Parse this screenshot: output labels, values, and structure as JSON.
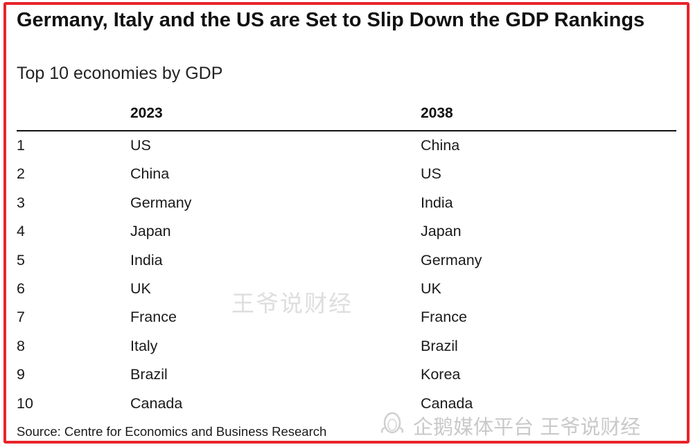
{
  "chart_data": {
    "type": "table",
    "title": "Germany, Italy and the US are Set to Slip Down the GDP Rankings",
    "subtitle": "Top 10 economies by GDP",
    "columns": [
      "",
      "2023",
      "2038"
    ],
    "rows": [
      {
        "rank": "1",
        "y2023": "US",
        "y2038": "China"
      },
      {
        "rank": "2",
        "y2023": "China",
        "y2038": "US"
      },
      {
        "rank": "3",
        "y2023": "Germany",
        "y2038": "India"
      },
      {
        "rank": "4",
        "y2023": "Japan",
        "y2038": "Japan"
      },
      {
        "rank": "5",
        "y2023": "India",
        "y2038": "Germany"
      },
      {
        "rank": "6",
        "y2023": "UK",
        "y2038": "UK"
      },
      {
        "rank": "7",
        "y2023": "France",
        "y2038": "France"
      },
      {
        "rank": "8",
        "y2023": "Italy",
        "y2038": "Brazil"
      },
      {
        "rank": "9",
        "y2023": "Brazil",
        "y2038": "Korea"
      },
      {
        "rank": "10",
        "y2023": "Canada",
        "y2038": "Canada"
      }
    ],
    "source": "Source: Centre for Economics and Business Research"
  },
  "watermarks": {
    "center": "王爷说财经",
    "corner": "企鹅媒体平台 王爷说财经",
    "corner_icon": "penguin-logo-icon"
  },
  "colors": {
    "frame": "#e8232a",
    "text": "#111111",
    "watermark": "#d6d6d6"
  }
}
